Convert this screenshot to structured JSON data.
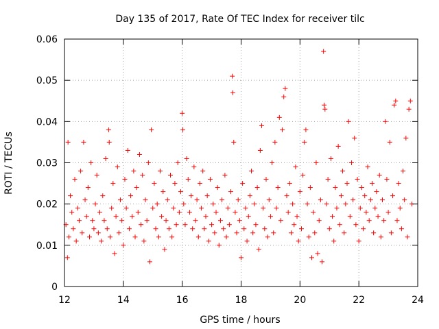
{
  "chart_data": {
    "type": "scatter",
    "title": "Day 135 of 2017, Rate Of TEC Index for receiver tilc",
    "xlabel": "GPS time / hours",
    "ylabel": "ROTI / TECUs",
    "xlim": [
      12,
      24
    ],
    "ylim": [
      0,
      0.06
    ],
    "xticks": [
      12,
      14,
      16,
      18,
      20,
      22,
      24
    ],
    "yticks": [
      0,
      0.01,
      0.02,
      0.03,
      0.04,
      0.05,
      0.06
    ],
    "ytick_labels": [
      "0",
      "0.01",
      "0.02",
      "0.03",
      "0.04",
      "0.05",
      "0.06"
    ],
    "grid": true,
    "marker": "+",
    "color": "#ff0000",
    "series": [
      {
        "name": "ROTI",
        "x": [
          12.05,
          12.1,
          12.12,
          12.15,
          12.2,
          12.25,
          12.3,
          12.35,
          12.4,
          12.45,
          12.5,
          12.55,
          12.6,
          12.65,
          12.7,
          12.75,
          12.8,
          12.85,
          12.9,
          12.95,
          13.0,
          13.05,
          13.1,
          13.15,
          13.2,
          13.25,
          13.3,
          13.35,
          13.4,
          13.45,
          13.5,
          13.52,
          13.55,
          13.6,
          13.65,
          13.7,
          13.75,
          13.8,
          13.85,
          13.9,
          13.95,
          14.0,
          14.05,
          14.1,
          14.15,
          14.2,
          14.25,
          14.3,
          14.35,
          14.4,
          14.45,
          14.5,
          14.55,
          14.6,
          14.65,
          14.7,
          14.75,
          14.8,
          14.85,
          14.9,
          14.95,
          15.0,
          15.05,
          15.1,
          15.15,
          15.2,
          15.25,
          15.3,
          15.35,
          15.4,
          15.45,
          15.5,
          15.55,
          15.6,
          15.65,
          15.7,
          15.75,
          15.8,
          15.85,
          15.9,
          15.95,
          16.0,
          16.02,
          16.05,
          16.1,
          16.15,
          16.2,
          16.25,
          16.3,
          16.35,
          16.4,
          16.45,
          16.5,
          16.55,
          16.6,
          16.65,
          16.7,
          16.75,
          16.8,
          16.85,
          16.9,
          16.95,
          17.0,
          17.05,
          17.1,
          17.15,
          17.2,
          17.25,
          17.3,
          17.35,
          17.4,
          17.45,
          17.5,
          17.55,
          17.6,
          17.65,
          17.7,
          17.72,
          17.75,
          17.8,
          17.85,
          17.9,
          17.95,
          18.0,
          18.05,
          18.1,
          18.15,
          18.2,
          18.25,
          18.3,
          18.35,
          18.4,
          18.45,
          18.5,
          18.55,
          18.6,
          18.65,
          18.7,
          18.75,
          18.8,
          18.85,
          18.9,
          18.95,
          19.0,
          19.05,
          19.1,
          19.15,
          19.2,
          19.25,
          19.3,
          19.35,
          19.4,
          19.45,
          19.5,
          19.55,
          19.6,
          19.65,
          19.7,
          19.75,
          19.8,
          19.85,
          19.9,
          19.95,
          20.0,
          20.05,
          20.1,
          20.15,
          20.2,
          20.25,
          20.3,
          20.35,
          20.4,
          20.45,
          20.5,
          20.55,
          20.6,
          20.65,
          20.7,
          20.75,
          20.8,
          20.82,
          20.85,
          20.9,
          20.95,
          21.0,
          21.05,
          21.1,
          21.15,
          21.2,
          21.25,
          21.3,
          21.35,
          21.4,
          21.45,
          21.5,
          21.55,
          21.6,
          21.65,
          21.7,
          21.75,
          21.8,
          21.85,
          21.9,
          21.95,
          22.0,
          22.05,
          22.1,
          22.15,
          22.2,
          22.25,
          22.3,
          22.35,
          22.4,
          22.45,
          22.5,
          22.55,
          22.6,
          22.65,
          22.7,
          22.75,
          22.8,
          22.85,
          22.9,
          22.95,
          23.0,
          23.05,
          23.1,
          23.15,
          23.2,
          23.25,
          23.3,
          23.35,
          23.4,
          23.45,
          23.5,
          23.55,
          23.6,
          23.65,
          23.7,
          23.75,
          23.8
        ],
        "y": [
          0.015,
          0.007,
          0.035,
          0.012,
          0.022,
          0.018,
          0.014,
          0.026,
          0.011,
          0.019,
          0.016,
          0.028,
          0.013,
          0.035,
          0.021,
          0.017,
          0.024,
          0.012,
          0.03,
          0.016,
          0.014,
          0.02,
          0.027,
          0.013,
          0.018,
          0.011,
          0.022,
          0.016,
          0.031,
          0.014,
          0.038,
          0.035,
          0.012,
          0.019,
          0.025,
          0.008,
          0.017,
          0.029,
          0.013,
          0.021,
          0.016,
          0.01,
          0.026,
          0.019,
          0.033,
          0.014,
          0.022,
          0.017,
          0.028,
          0.012,
          0.024,
          0.018,
          0.032,
          0.015,
          0.027,
          0.011,
          0.021,
          0.016,
          0.03,
          0.006,
          0.038,
          0.019,
          0.025,
          0.014,
          0.02,
          0.012,
          0.028,
          0.017,
          0.023,
          0.009,
          0.016,
          0.021,
          0.014,
          0.027,
          0.012,
          0.019,
          0.025,
          0.015,
          0.03,
          0.018,
          0.023,
          0.042,
          0.038,
          0.02,
          0.015,
          0.031,
          0.026,
          0.018,
          0.022,
          0.014,
          0.029,
          0.016,
          0.021,
          0.012,
          0.025,
          0.019,
          0.028,
          0.014,
          0.017,
          0.022,
          0.011,
          0.026,
          0.015,
          0.02,
          0.013,
          0.018,
          0.024,
          0.01,
          0.016,
          0.021,
          0.014,
          0.027,
          0.012,
          0.019,
          0.015,
          0.023,
          0.051,
          0.047,
          0.035,
          0.018,
          0.013,
          0.021,
          0.016,
          0.007,
          0.025,
          0.014,
          0.019,
          0.011,
          0.017,
          0.022,
          0.028,
          0.013,
          0.02,
          0.015,
          0.024,
          0.009,
          0.033,
          0.039,
          0.019,
          0.014,
          0.026,
          0.012,
          0.021,
          0.017,
          0.03,
          0.013,
          0.035,
          0.019,
          0.024,
          0.041,
          0.016,
          0.038,
          0.046,
          0.048,
          0.022,
          0.018,
          0.025,
          0.013,
          0.02,
          0.015,
          0.029,
          0.017,
          0.011,
          0.023,
          0.014,
          0.027,
          0.035,
          0.038,
          0.02,
          0.012,
          0.024,
          0.007,
          0.018,
          0.013,
          0.03,
          0.008,
          0.016,
          0.021,
          0.006,
          0.057,
          0.044,
          0.043,
          0.02,
          0.026,
          0.014,
          0.031,
          0.017,
          0.011,
          0.024,
          0.019,
          0.034,
          0.015,
          0.022,
          0.028,
          0.013,
          0.02,
          0.025,
          0.04,
          0.017,
          0.03,
          0.021,
          0.036,
          0.015,
          0.026,
          0.011,
          0.019,
          0.024,
          0.014,
          0.022,
          0.018,
          0.029,
          0.016,
          0.021,
          0.025,
          0.013,
          0.019,
          0.023,
          0.017,
          0.027,
          0.012,
          0.021,
          0.016,
          0.04,
          0.026,
          0.018,
          0.035,
          0.013,
          0.022,
          0.044,
          0.045,
          0.016,
          0.025,
          0.019,
          0.014,
          0.028,
          0.021,
          0.036,
          0.012,
          0.043,
          0.045,
          0.02
        ]
      }
    ]
  }
}
